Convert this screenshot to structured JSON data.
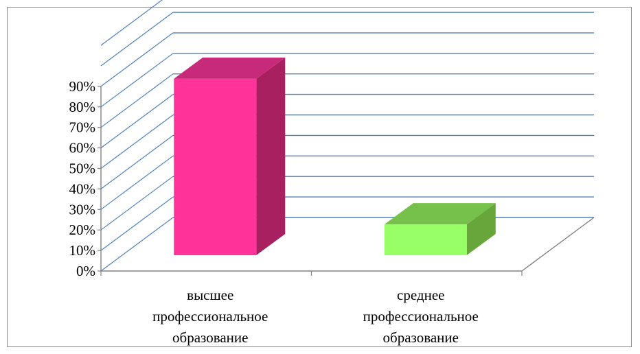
{
  "chart_data": {
    "type": "bar",
    "title": "",
    "xlabel": "",
    "ylabel": "",
    "categories": [
      [
        "высшее",
        "профессиональное",
        "образование"
      ],
      [
        "среднее",
        "профессиональное",
        "образование"
      ]
    ],
    "values": [
      86,
      15
    ],
    "ylim": [
      0,
      90
    ],
    "yticks": [
      "0%",
      "10%",
      "20%",
      "30%",
      "40%",
      "50%",
      "60%",
      "70%",
      "80%",
      "90%"
    ],
    "extra_gridlines_above_top": 2,
    "grid": true,
    "legend": "none",
    "style": "3d-column",
    "colors": {
      "bar_front": [
        "#ff3399",
        "#99ff66"
      ],
      "bar_top": [
        "#c72a78",
        "#76c04c"
      ],
      "bar_side": [
        "#a8205f",
        "#66a63a"
      ],
      "gridline": "#4f81bd",
      "axis": "#808080"
    }
  }
}
